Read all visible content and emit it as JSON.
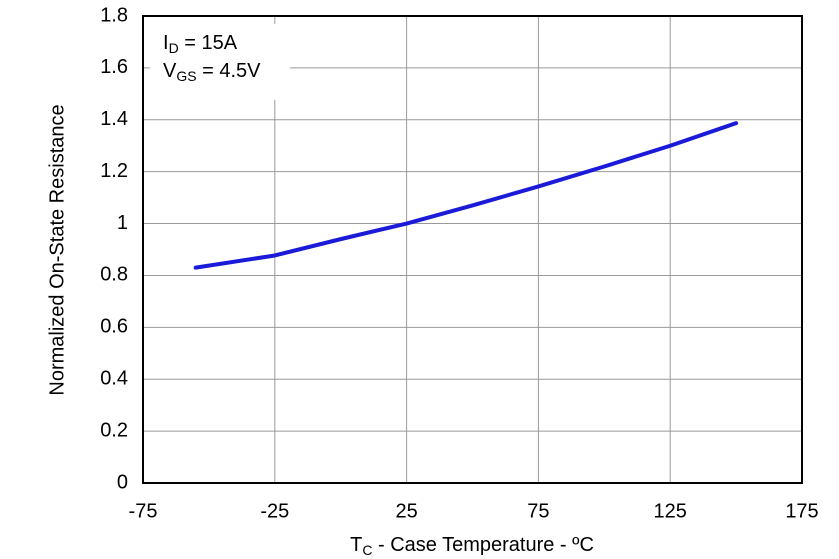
{
  "chart_data": {
    "type": "line",
    "x": [
      -55,
      -25,
      0,
      25,
      50,
      75,
      100,
      125,
      150
    ],
    "series": [
      {
        "color": "#1a1ad8",
        "values": [
          0.83,
          0.877,
          0.94,
          1.0,
          1.07,
          1.143,
          1.22,
          1.3,
          1.387
        ]
      }
    ],
    "xlim": [
      -75,
      175
    ],
    "xticks": [
      -75,
      -25,
      25,
      75,
      125,
      175
    ],
    "ylim": [
      0,
      1.8
    ],
    "yticks": [
      0,
      0.2,
      0.4,
      0.6,
      0.8,
      1,
      1.2,
      1.4,
      1.6,
      1.8
    ],
    "grid": true,
    "xlabel": {
      "main": "T",
      "sub": "C",
      "rest": " - Case Temperature - ºC"
    },
    "ylabel": "Normalized On-State Resistance",
    "annotations": [
      {
        "main": "I",
        "sub": "D",
        "rest": " = 15A"
      },
      {
        "main": "V",
        "sub": "GS",
        "rest": " = 4.5V"
      }
    ]
  }
}
